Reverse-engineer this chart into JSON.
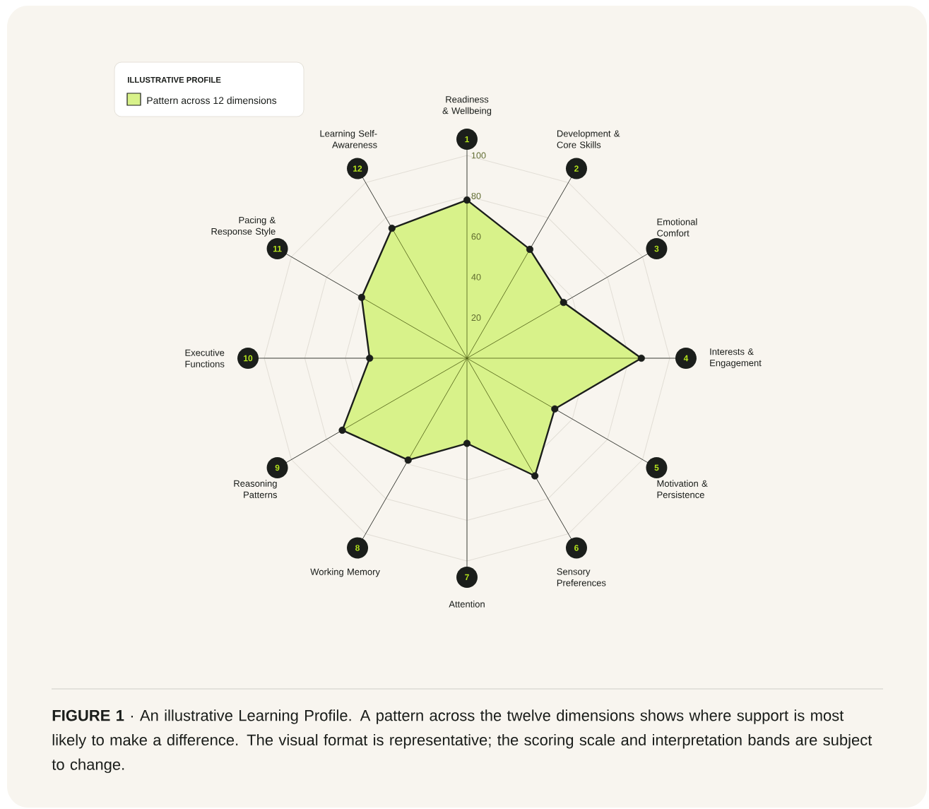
{
  "chart_data": {
    "type": "radar",
    "categories": [
      "Readiness & Wellbeing",
      "Development & Core Skills",
      "Emotional Comfort",
      "Interests & Engagement",
      "Motivation & Persistence",
      "Sensory Preferences",
      "Attention",
      "Working Memory",
      "Reasoning Patterns",
      "Executive Functions",
      "Pacing & Response Style",
      "Learning Self-Awareness"
    ],
    "series": [
      {
        "name": "Pattern across 12 dimensions",
        "color": "#d8f28a",
        "values": [
          78,
          62,
          55,
          86,
          50,
          67,
          42,
          58,
          71,
          48,
          60,
          74
        ]
      }
    ],
    "ylim": [
      0,
      100
    ],
    "yticks": [
      20,
      40,
      60,
      80,
      100
    ],
    "grid": true,
    "legend": "top left",
    "legend_title": "ILLUSTRATIVE PROFILE",
    "marker": "circle",
    "annotations": [
      "**FIGURE 1** · An illustrative Learning Profile. A pattern across the twelve dimensions shows where support is most likely to make a difference. The visual format is representative; the scoring scale and interpretation bands are subject to change.",
      "1",
      "2",
      "3",
      "4",
      "5",
      "6",
      "7",
      "8",
      "9",
      "10",
      "11",
      "12"
    ]
  }
}
